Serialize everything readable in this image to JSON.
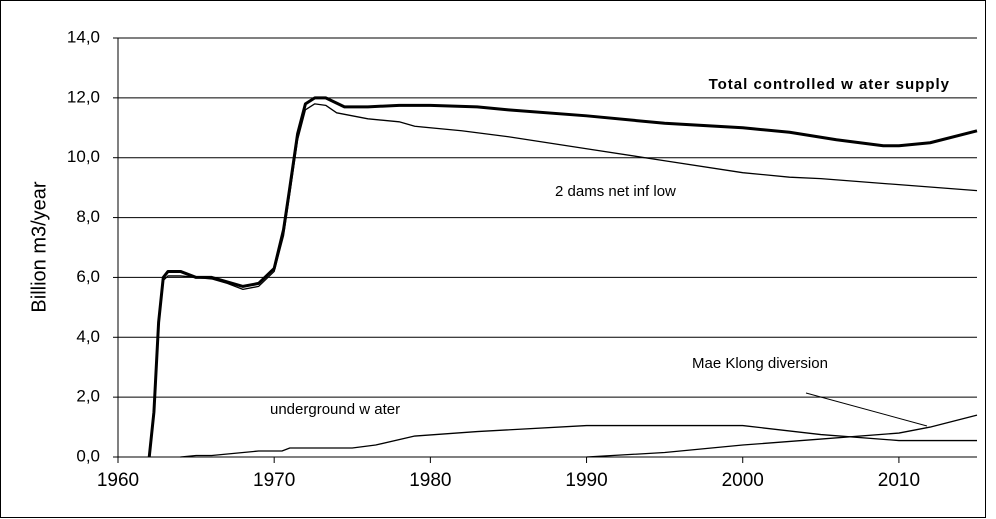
{
  "chart_data": {
    "type": "line",
    "y_label": "Billion m3/year",
    "xlim": [
      1960,
      2015
    ],
    "xticks": [
      1960,
      1970,
      1980,
      1990,
      2000,
      2010
    ],
    "ylim": [
      0,
      14
    ],
    "yticks": [
      {
        "value": 0,
        "label": "0,0"
      },
      {
        "value": 2,
        "label": "2,0"
      },
      {
        "value": 4,
        "label": "4,0"
      },
      {
        "value": 6,
        "label": "6,0"
      },
      {
        "value": 8,
        "label": "8,0"
      },
      {
        "value": 10,
        "label": "10,0"
      },
      {
        "value": 12,
        "label": "12,0"
      },
      {
        "value": 14,
        "label": "14,0"
      }
    ],
    "grid": true,
    "series": [
      {
        "name": "Total controlled w ater supply",
        "color": "#000000",
        "x": [
          1962,
          1962.3,
          1962.6,
          1962.9,
          1963.2,
          1964,
          1965,
          1966,
          1967,
          1968,
          1969,
          1970,
          1970.6,
          1971,
          1971.5,
          1972,
          1972.6,
          1973.3,
          1974.5,
          1976,
          1978,
          1980,
          1983,
          1985,
          1990,
          1995,
          2000,
          2003,
          2006,
          2009,
          2010,
          2012,
          2015
        ],
        "values": [
          0,
          1.5,
          4.5,
          6.0,
          6.2,
          6.2,
          6.0,
          6.0,
          5.85,
          5.7,
          5.8,
          6.3,
          7.6,
          9.0,
          10.8,
          11.8,
          12.0,
          12.0,
          11.7,
          11.7,
          11.75,
          11.75,
          11.7,
          11.6,
          11.4,
          11.15,
          11.0,
          10.85,
          10.6,
          10.4,
          10.4,
          10.5,
          10.9
        ]
      },
      {
        "name": "2 dams net inf low",
        "color": "#000000",
        "x": [
          1962,
          1962.3,
          1962.6,
          1962.9,
          1963.2,
          1964,
          1965,
          1966,
          1967,
          1968,
          1969,
          1970,
          1970.6,
          1971,
          1971.5,
          1972,
          1972.6,
          1973.3,
          1974,
          1976,
          1978,
          1979,
          1982,
          1985,
          1990,
          1995,
          2000,
          2003,
          2005,
          2010,
          2015
        ],
        "values": [
          0,
          1.5,
          4.5,
          5.9,
          6.05,
          6.05,
          6.0,
          5.95,
          5.8,
          5.6,
          5.7,
          6.2,
          7.4,
          8.8,
          10.6,
          11.6,
          11.8,
          11.75,
          11.5,
          11.3,
          11.2,
          11.05,
          10.9,
          10.7,
          10.3,
          9.9,
          9.5,
          9.35,
          9.3,
          9.1,
          8.9
        ]
      },
      {
        "name": "underground w ater",
        "color": "#000000",
        "x": [
          1964,
          1965,
          1966,
          1969,
          1970.5,
          1971,
          1975,
          1976.5,
          1979,
          1983,
          1990,
          2000,
          2005,
          2010,
          2015
        ],
        "values": [
          0,
          0.05,
          0.05,
          0.2,
          0.2,
          0.3,
          0.3,
          0.4,
          0.7,
          0.85,
          1.05,
          1.05,
          0.75,
          0.55,
          0.55
        ]
      },
      {
        "name": "Mae Klong diversion",
        "color": "#000000",
        "x": [
          1990,
          1995,
          2000,
          2005,
          2010,
          2012,
          2015
        ],
        "values": [
          0,
          0.15,
          0.4,
          0.6,
          0.8,
          1.0,
          1.4
        ]
      }
    ]
  }
}
